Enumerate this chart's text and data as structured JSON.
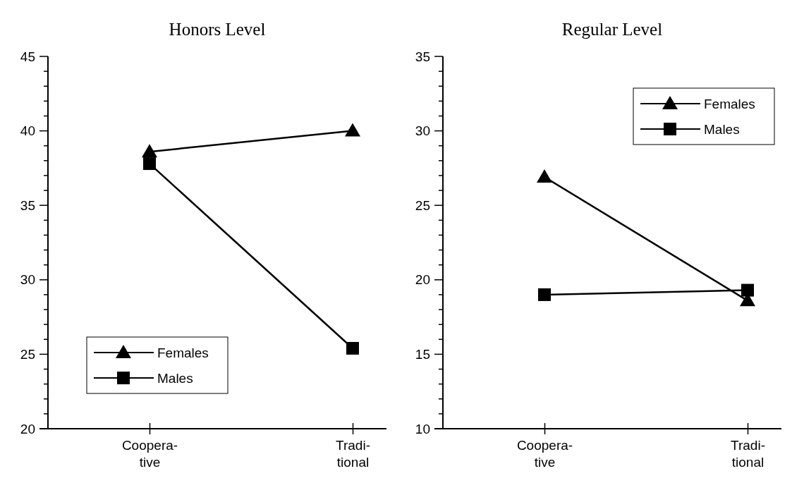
{
  "chart_data": [
    {
      "type": "line",
      "title": "Honors Level",
      "categories": [
        "Coopera-\ntive",
        "Tradi-\ntional"
      ],
      "series": [
        {
          "name": "Females",
          "color": "#000000",
          "marker": "triangle",
          "values": [
            38.6,
            40.0
          ]
        },
        {
          "name": "Males",
          "color": "#000000",
          "marker": "square",
          "values": [
            37.8,
            25.4
          ]
        }
      ],
      "ylim": [
        20,
        45
      ],
      "yticks": [
        20,
        {
          "value": 21,
          "label": null
        },
        {
          "value": 22,
          "label": null
        },
        {
          "value": 23,
          "label": null
        },
        {
          "value": 24,
          "label": null
        },
        25,
        {
          "value": 26,
          "label": null
        },
        {
          "value": 27,
          "label": null
        },
        {
          "value": 28,
          "label": null
        },
        {
          "value": 29,
          "label": null
        },
        30,
        {
          "value": 31,
          "label": null
        },
        {
          "value": 32,
          "label": null
        },
        {
          "value": 33,
          "label": null
        },
        {
          "value": 34,
          "label": null
        },
        35,
        {
          "value": 36,
          "label": null
        },
        {
          "value": 37,
          "label": null
        },
        {
          "value": 38,
          "label": null
        },
        {
          "value": 39,
          "label": null
        },
        40,
        {
          "value": 41,
          "label": null
        },
        {
          "value": 42,
          "label": null
        },
        {
          "value": 43,
          "label": null
        },
        {
          "value": 44,
          "label": null
        },
        45
      ],
      "grid": false,
      "legend": "bottom left"
    },
    {
      "type": "line",
      "title": "Regular Level",
      "categories": [
        "Coopera-\ntive",
        "Tradi-\ntional"
      ],
      "series": [
        {
          "name": "Females",
          "color": "#000000",
          "marker": "triangle",
          "values": [
            26.9,
            18.6
          ]
        },
        {
          "name": "Males",
          "color": "#000000",
          "marker": "square",
          "values": [
            19.0,
            19.3
          ]
        }
      ],
      "ylim": [
        10,
        35
      ],
      "yticks": [
        10,
        {
          "value": 11,
          "label": null
        },
        {
          "value": 12,
          "label": null
        },
        {
          "value": 13,
          "label": null
        },
        {
          "value": 14,
          "label": null
        },
        15,
        {
          "value": 16,
          "label": null
        },
        {
          "value": 17,
          "label": null
        },
        {
          "value": 18,
          "label": null
        },
        {
          "value": 19,
          "label": null
        },
        20,
        {
          "value": 21,
          "label": null
        },
        {
          "value": 22,
          "label": null
        },
        {
          "value": 23,
          "label": null
        },
        {
          "value": 24,
          "label": null
        },
        25,
        {
          "value": 26,
          "label": null
        },
        {
          "value": 27,
          "label": null
        },
        {
          "value": 28,
          "label": null
        },
        {
          "value": 29,
          "label": null
        },
        30,
        {
          "value": 31,
          "label": null
        },
        {
          "value": 32,
          "label": null
        },
        {
          "value": 33,
          "label": null
        },
        {
          "value": 34,
          "label": null
        },
        35
      ],
      "grid": false,
      "legend": "top right"
    }
  ]
}
